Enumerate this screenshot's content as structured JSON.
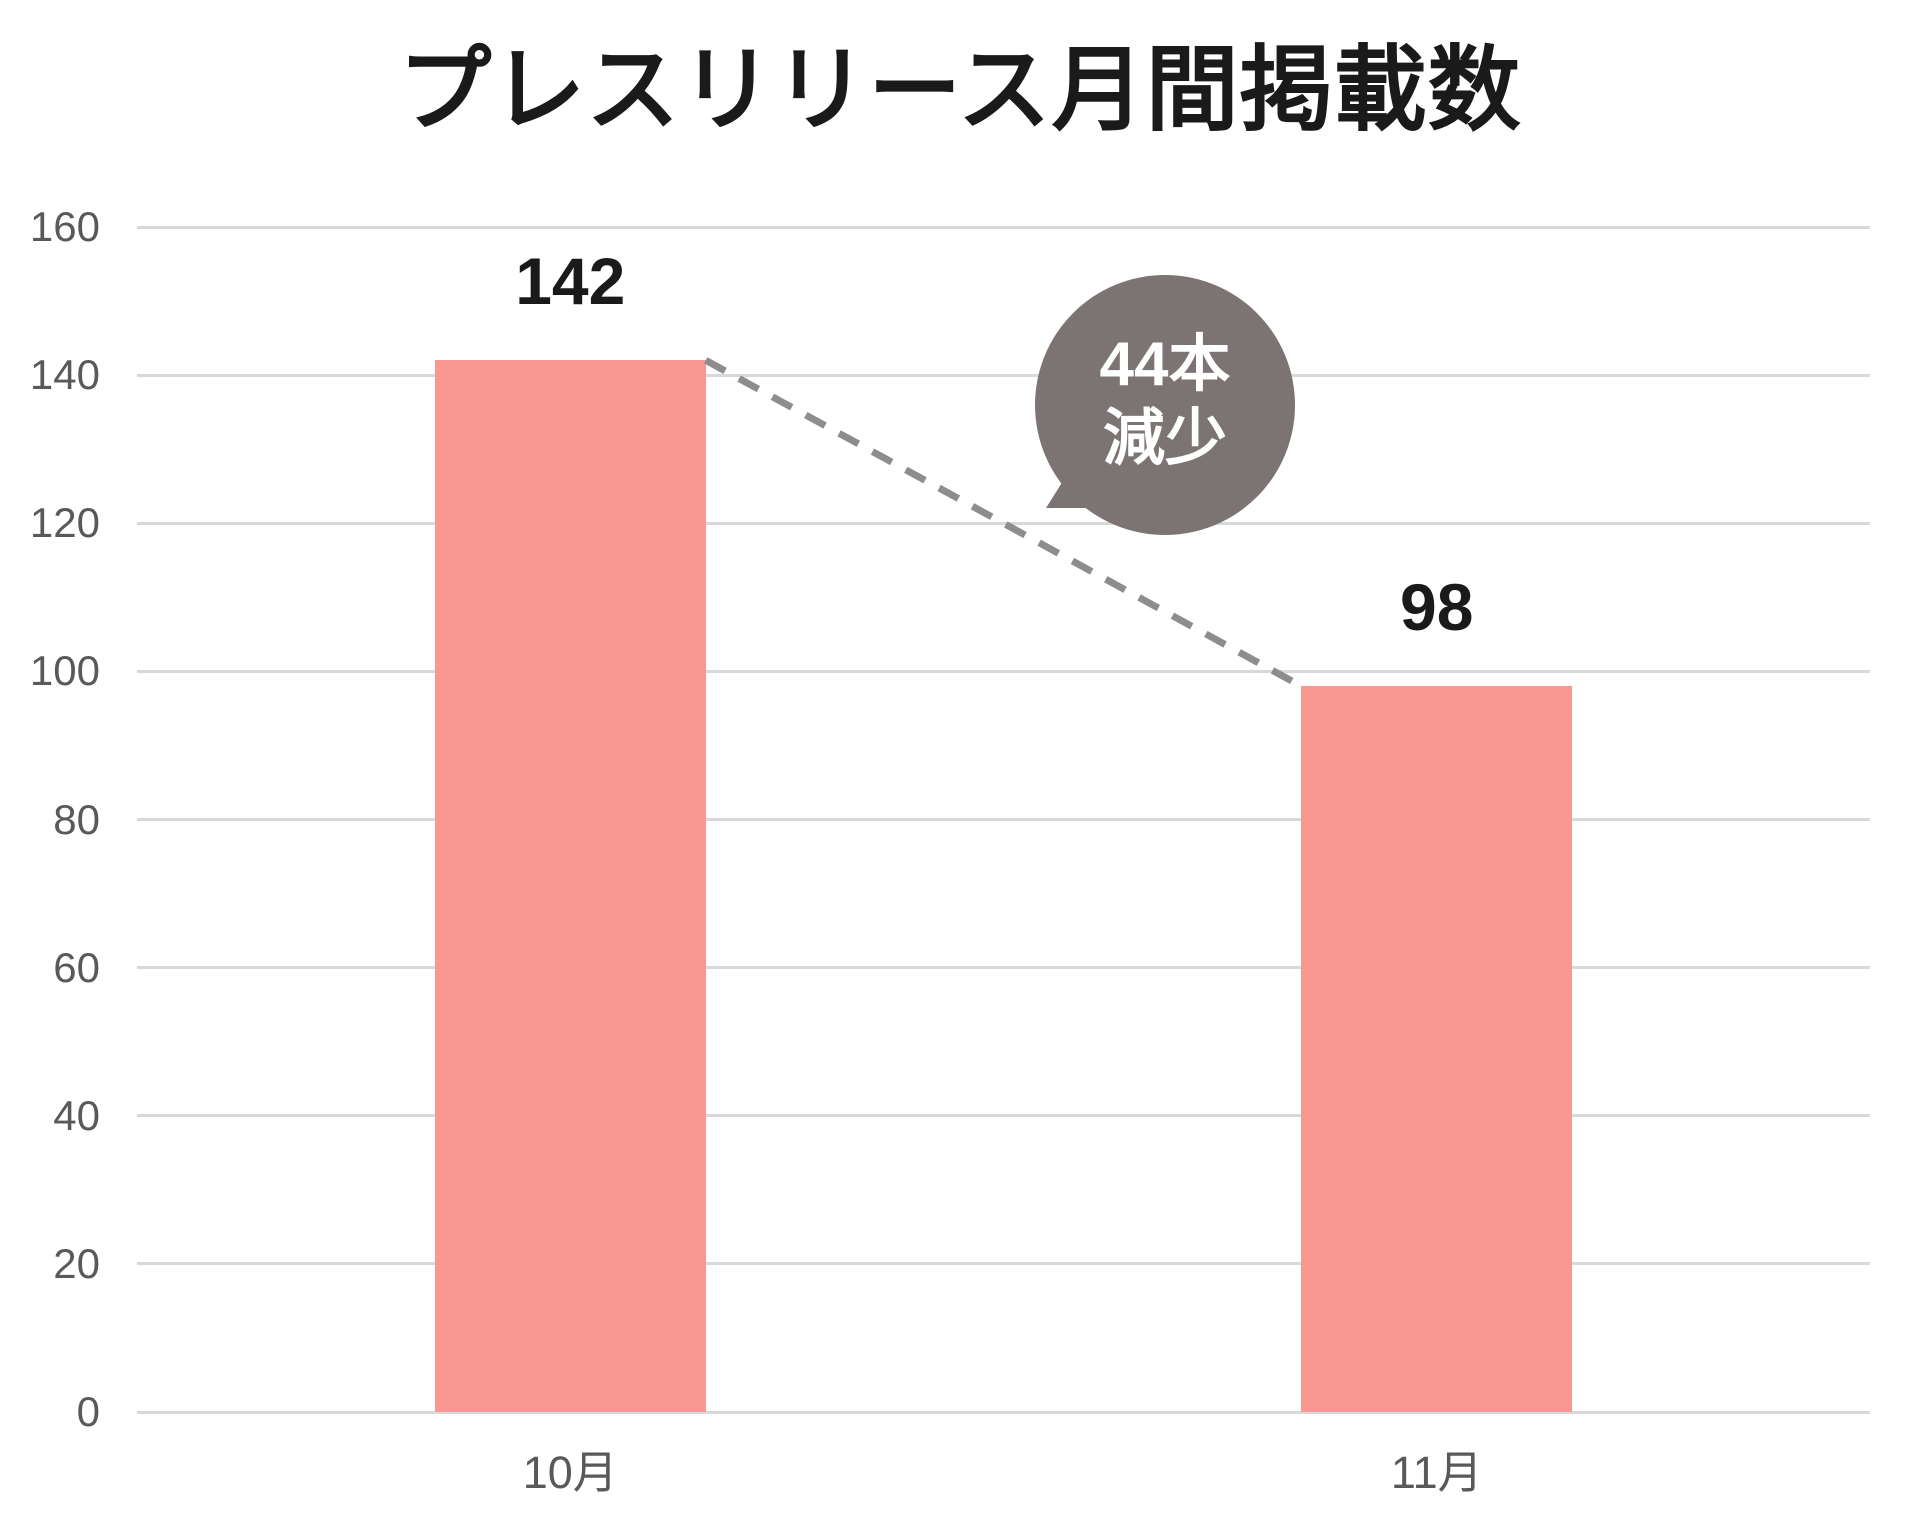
{
  "title": {
    "text": "プレスリリース月間掲載数"
  },
  "chart_data": {
    "type": "bar",
    "title": "プレスリリース月間掲載数",
    "categories": [
      "10月",
      "11月"
    ],
    "values": [
      142,
      98
    ],
    "data_labels": [
      "142",
      "98"
    ],
    "xlabel": "",
    "ylabel": "",
    "ylim": [
      0,
      160
    ],
    "yticks": [
      160,
      140,
      120,
      100,
      80,
      60,
      40,
      20,
      0
    ],
    "grid": true,
    "legend": "none",
    "annotation": {
      "line1": "44本",
      "line2": "減少",
      "connector": "dashed line from top of 10月 bar to top of 11月 bar"
    }
  },
  "annotation_bubble": {
    "line1": "44本",
    "line2": "減少"
  },
  "colors": {
    "background": "#ffffff",
    "bar": "#f99893",
    "bubble": "#7b7472",
    "bubble_text": "#ffffff",
    "dash_line": "#8d8d8b",
    "gridline": "#d9d9d9",
    "axis_text": "#595959",
    "title_text": "#1a1a1a",
    "value_text": "#1a1a1a"
  }
}
